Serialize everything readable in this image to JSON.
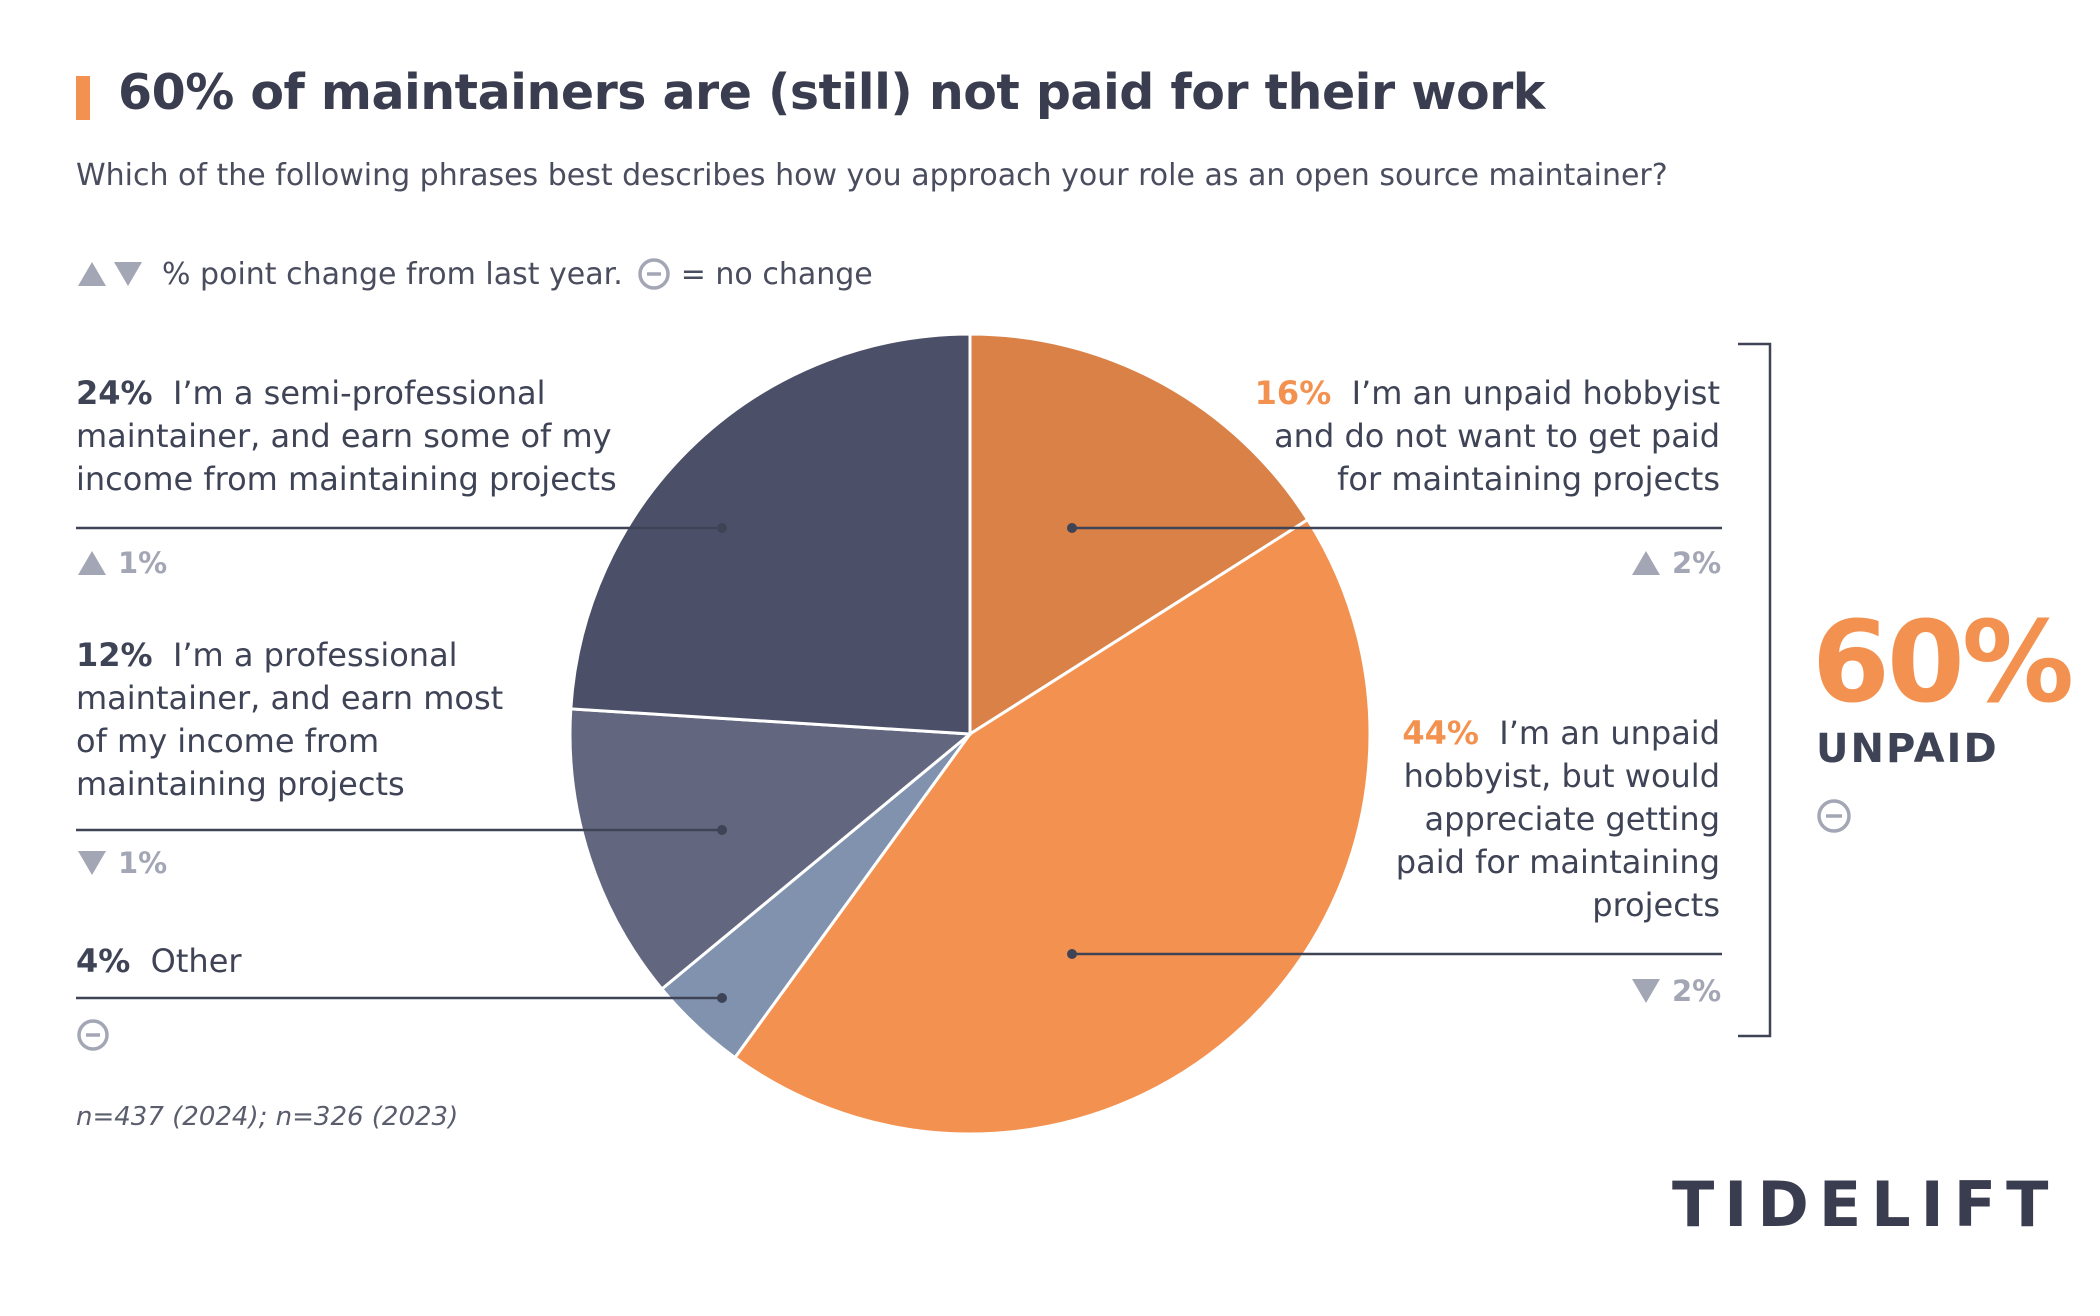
{
  "header": {
    "title": "60% of maintainers are (still) not paid for their work",
    "subtitle": "Which of the following phrases best describes how you approach your role as an open source maintainer?",
    "legend_text": "% point change from last year.",
    "legend_nochange": "= no change"
  },
  "chart_data": {
    "type": "pie",
    "slices": [
      {
        "label": "I’m an unpaid hobbyist and do not want to get paid for maintaining projects",
        "pct_label": "16%",
        "value": 16,
        "change": "2%",
        "change_dir": "up",
        "color": "#d98146"
      },
      {
        "label": "I’m an unpaid hobbyist, but would appreciate getting paid for maintaining projects",
        "pct_label": "44%",
        "value": 44,
        "change": "2%",
        "change_dir": "down",
        "color": "#f39250"
      },
      {
        "label": "Other",
        "pct_label": "4%",
        "value": 4,
        "change": "",
        "change_dir": "none",
        "color": "#8092ad"
      },
      {
        "label": "I’m a professional maintainer, and earn most of my income from maintaining projects",
        "pct_label": "12%",
        "value": 12,
        "change": "1%",
        "change_dir": "down",
        "color": "#62677f"
      },
      {
        "label": "I’m a semi-professional maintainer, and earn some of my income from maintaining projects",
        "pct_label": "24%",
        "value": 24,
        "change": "1%",
        "change_dir": "up",
        "color": "#4b5068"
      }
    ]
  },
  "summary": {
    "value": "60%",
    "label": "UNPAID",
    "change_dir": "none"
  },
  "footnote": "n=437 (2024); n=326 (2023)",
  "logo": "TIDELIFT",
  "colors": {
    "orange": "#f39250",
    "dark_orange": "#d98146",
    "navy": "#4b5068",
    "slate": "#62677f",
    "blue_gray": "#8092ad",
    "change_gray": "#a3a6b4"
  }
}
